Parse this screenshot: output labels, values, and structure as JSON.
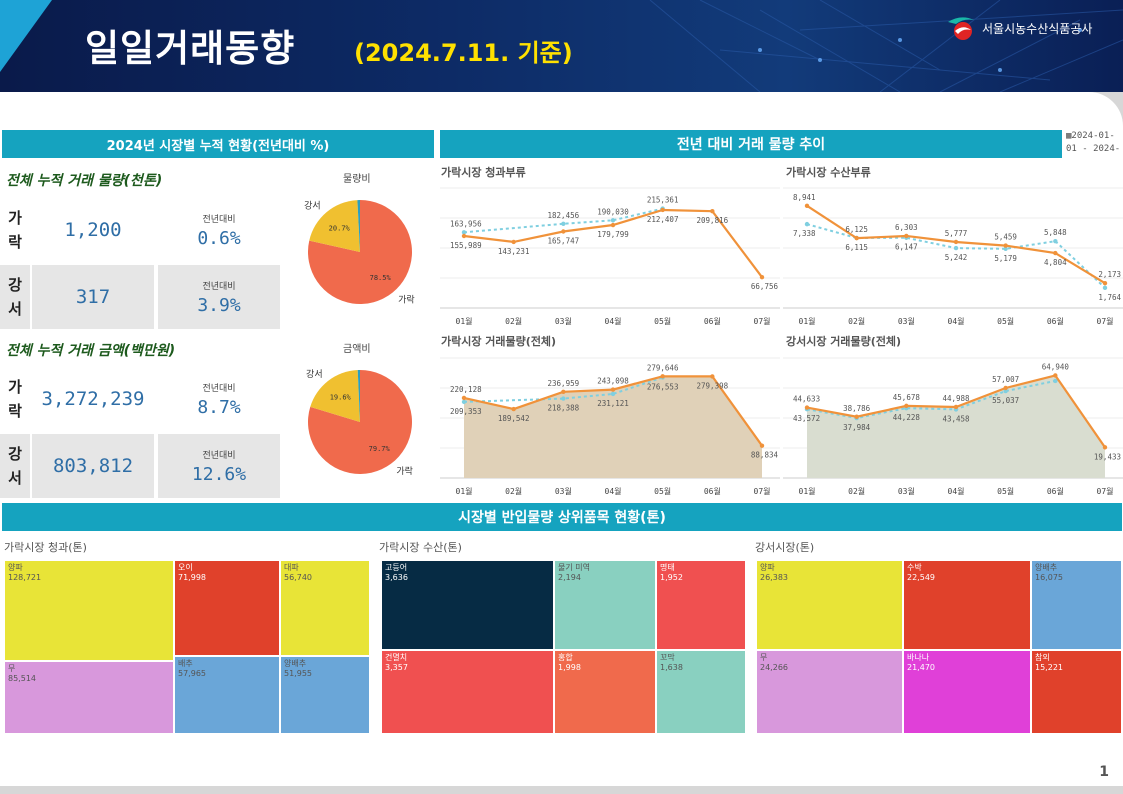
{
  "header": {
    "title": "일일거래동향",
    "date": "(2024.7.11. 기준)",
    "logo_text": "서울시농수산식품공사"
  },
  "page_number": "1",
  "left_panel": {
    "title": "2024년 시장별 누적 현황(전년대비 %)",
    "volume_section": {
      "title": "전체 누적 거래 물량(천톤)",
      "pie_label": "물량비",
      "rows": [
        {
          "name1": "가",
          "name2": "락",
          "value": "1,200",
          "yoy_label": "전년대비",
          "yoy": "0.6%"
        },
        {
          "name1": "강",
          "name2": "서",
          "value": "317",
          "yoy_label": "전년대비",
          "yoy": "3.9%"
        }
      ]
    },
    "amount_section": {
      "title": "전체 누적 거래 금액(백만원)",
      "pie_label": "금액비",
      "rows": [
        {
          "name1": "가",
          "name2": "락",
          "value": "3,272,239",
          "yoy_label": "전년대비",
          "yoy": "8.7%"
        },
        {
          "name1": "강",
          "name2": "서",
          "value": "803,812",
          "yoy_label": "전년대비",
          "yoy": "12.6%"
        }
      ]
    }
  },
  "trend_panel": {
    "title": "전년 대비 거래 물량 추이",
    "date_range_line1": "2024-01-",
    "date_range_line2": "01 - 2024-"
  },
  "bottom_panel": {
    "title": "시장별 반입물량 상위품목 현황(톤)"
  },
  "chart_data": [
    {
      "type": "pie",
      "title": "물량비",
      "slices": [
        {
          "name": "가락",
          "value": 78.5,
          "label": "78.5%",
          "color": "#f06a4c"
        },
        {
          "name": "강서",
          "value": 20.7,
          "label": "20.7%",
          "color": "#f0c030"
        },
        {
          "name": "",
          "value": 0.8,
          "label": "",
          "color": "#2aa0c0"
        }
      ]
    },
    {
      "type": "pie",
      "title": "금액비",
      "slices": [
        {
          "name": "가락",
          "value": 79.7,
          "label": "79.7%",
          "color": "#f06a4c"
        },
        {
          "name": "강서",
          "value": 19.6,
          "label": "19.6%",
          "color": "#f0c030"
        },
        {
          "name": "",
          "value": 0.7,
          "label": "",
          "color": "#2aa0c0"
        }
      ]
    },
    {
      "type": "line",
      "title": "가락시장 청과부류",
      "categories": [
        "01월",
        "02월",
        "03월",
        "04월",
        "05월",
        "06월",
        "07월"
      ],
      "series": [
        {
          "values": [
            155989,
            143231,
            165747,
            179799,
            212407,
            209816,
            66756
          ],
          "labels": [
            "155,989",
            "143,231",
            "165,747",
            "179,799",
            "212,407",
            "209,816",
            "66,756"
          ],
          "color": "#f0923a",
          "style": "solid"
        },
        {
          "values": [
            163956,
            null,
            182456,
            190030,
            215361,
            null,
            null
          ],
          "labels": [
            "163,956",
            "",
            "182,456",
            "190,030",
            "215,361",
            "",
            ""
          ],
          "color": "#7fcfe0",
          "style": "dashed"
        }
      ],
      "ylim": [
        0,
        260000
      ]
    },
    {
      "type": "line",
      "title": "가락시장 수산부류",
      "categories": [
        "01월",
        "02월",
        "03월",
        "04월",
        "05월",
        "06월",
        "07월"
      ],
      "series": [
        {
          "values": [
            8941,
            6115,
            6303,
            5777,
            5459,
            4804,
            2173
          ],
          "labels": [
            "8,941",
            "6,115",
            "6,303",
            "5,777",
            "5,459",
            "4,804",
            "2,173"
          ],
          "color": "#f0923a",
          "style": "solid"
        },
        {
          "values": [
            7338,
            6125,
            6147,
            5242,
            5179,
            5848,
            1764
          ],
          "labels": [
            "7,338",
            "6,125",
            "6,147",
            "5,242",
            "5,179",
            "5,848",
            "1,764"
          ],
          "color": "#7fcfe0",
          "style": "dashed"
        }
      ],
      "ylim": [
        0,
        10500
      ]
    },
    {
      "type": "area",
      "title": "가락시장 거래물량(전체)",
      "categories": [
        "01월",
        "02월",
        "03월",
        "04월",
        "05월",
        "06월",
        "07월"
      ],
      "series": [
        {
          "values": [
            220128,
            189542,
            236959,
            243098,
            279646,
            279398,
            88834
          ],
          "labels": [
            "220,128",
            "189,542",
            "236,959",
            "243,098",
            "279,646",
            "279,398",
            "88,834"
          ],
          "color": "#f0923a",
          "style": "solid"
        },
        {
          "values": [
            209353,
            null,
            218388,
            231121,
            276553,
            null,
            null
          ],
          "labels": [
            "209,353",
            "",
            "218,388",
            "231,121",
            "276,553",
            "",
            ""
          ],
          "color": "#7fcfe0",
          "style": "dashed"
        }
      ],
      "area_color": "#e0d1b8",
      "ylim": [
        0,
        330000
      ]
    },
    {
      "type": "area",
      "title": "강서시장 거래물량(전체)",
      "categories": [
        "01월",
        "02월",
        "03월",
        "04월",
        "05월",
        "06월",
        "07월"
      ],
      "series": [
        {
          "values": [
            44633,
            38786,
            45678,
            44988,
            57007,
            64940,
            19433
          ],
          "labels": [
            "44,633",
            "38,786",
            "45,678",
            "44,988",
            "57,007",
            "64,940",
            "19,433"
          ],
          "color": "#f0923a",
          "style": "solid"
        },
        {
          "values": [
            43572,
            37984,
            44228,
            43458,
            55037,
            61500,
            null
          ],
          "labels": [
            "43,572",
            "37,984",
            "44,228",
            "43,458",
            "55,037",
            "",
            ""
          ],
          "color": "#7fcfe0",
          "style": "dashed"
        }
      ],
      "area_color": "#d9ddd0",
      "ylim": [
        0,
        76000
      ]
    },
    {
      "type": "treemap",
      "title": "가락시장 청과(톤)",
      "items": [
        {
          "name": "양파",
          "value": "128,721",
          "color": "#e8e437",
          "text": "#555"
        },
        {
          "name": "오이",
          "value": "71,998",
          "color": "#e0412b",
          "text": "#fff"
        },
        {
          "name": "대파",
          "value": "56,740",
          "color": "#e8e437",
          "text": "#555"
        },
        {
          "name": "무",
          "value": "85,514",
          "color": "#d898dc",
          "text": "#555"
        },
        {
          "name": "배추",
          "value": "57,965",
          "color": "#6aa6d8",
          "text": "#555"
        },
        {
          "name": "양배추",
          "value": "51,955",
          "color": "#6aa6d8",
          "text": "#555"
        }
      ]
    },
    {
      "type": "treemap",
      "title": "가락시장 수산(톤)",
      "items": [
        {
          "name": "고등어",
          "value": "3,636",
          "color": "#062b44",
          "text": "#fff"
        },
        {
          "name": "물기 미역",
          "value": "2,194",
          "color": "#89d0c0",
          "text": "#555"
        },
        {
          "name": "명태",
          "value": "1,952",
          "color": "#f05050",
          "text": "#fff"
        },
        {
          "name": "건멸치",
          "value": "3,357",
          "color": "#f05050",
          "text": "#fff"
        },
        {
          "name": "홍합",
          "value": "1,998",
          "color": "#f06a4c",
          "text": "#fff"
        },
        {
          "name": "꼬막",
          "value": "1,638",
          "color": "#89d0c0",
          "text": "#555"
        }
      ]
    },
    {
      "type": "treemap",
      "title": "강서시장(톤)",
      "items": [
        {
          "name": "양파",
          "value": "26,383",
          "color": "#e8e437",
          "text": "#555"
        },
        {
          "name": "수박",
          "value": "22,549",
          "color": "#e0412b",
          "text": "#fff"
        },
        {
          "name": "양배추",
          "value": "16,075",
          "color": "#6aa6d8",
          "text": "#555"
        },
        {
          "name": "무",
          "value": "24,266",
          "color": "#d898dc",
          "text": "#555"
        },
        {
          "name": "바나나",
          "value": "21,470",
          "color": "#e040d8",
          "text": "#fff"
        },
        {
          "name": "참외",
          "value": "15,221",
          "color": "#e0412b",
          "text": "#fff"
        }
      ]
    }
  ]
}
